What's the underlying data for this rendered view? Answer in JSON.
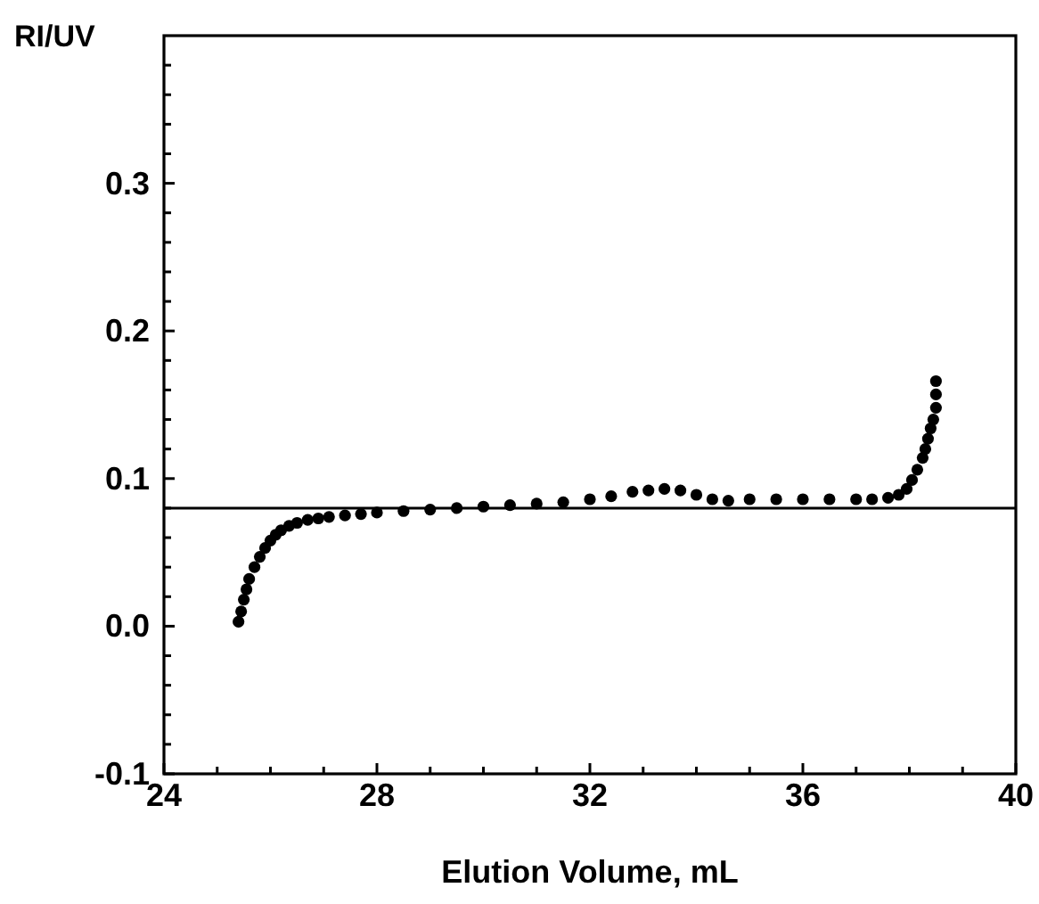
{
  "chart_data": {
    "type": "scatter",
    "xlabel": "Elution Volume, mL",
    "ylabel": "RI/UV",
    "xlim": [
      24,
      40
    ],
    "ylim": [
      -0.1,
      0.4
    ],
    "xticks": [
      24,
      {
        "value": 25,
        "label": null
      },
      {
        "value": 26,
        "label": null
      },
      {
        "value": 27,
        "label": null
      },
      28,
      {
        "value": 29,
        "label": null
      },
      {
        "value": 30,
        "label": null
      },
      {
        "value": 31,
        "label": null
      },
      32,
      {
        "value": 33,
        "label": null
      },
      {
        "value": 34,
        "label": null
      },
      {
        "value": 35,
        "label": null
      },
      36,
      {
        "value": 37,
        "label": null
      },
      {
        "value": 38,
        "label": null
      },
      {
        "value": 39,
        "label": null
      },
      40
    ],
    "yticks": [
      {
        "value": -0.1,
        "label": "-0.1"
      },
      {
        "value": -0.08,
        "label": null
      },
      {
        "value": -0.06,
        "label": null
      },
      {
        "value": -0.04,
        "label": null
      },
      {
        "value": -0.02,
        "label": null
      },
      {
        "value": 0,
        "label": "0.0"
      },
      {
        "value": 0.02,
        "label": null
      },
      {
        "value": 0.04,
        "label": null
      },
      {
        "value": 0.06,
        "label": null
      },
      {
        "value": 0.08,
        "label": null
      },
      {
        "value": 0.1,
        "label": "0.1"
      },
      {
        "value": 0.12,
        "label": null
      },
      {
        "value": 0.14,
        "label": null
      },
      {
        "value": 0.16,
        "label": null
      },
      {
        "value": 0.18,
        "label": null
      },
      {
        "value": 0.2,
        "label": "0.2"
      },
      {
        "value": 0.22,
        "label": null
      },
      {
        "value": 0.24,
        "label": null
      },
      {
        "value": 0.26,
        "label": null
      },
      {
        "value": 0.28,
        "label": null
      },
      {
        "value": 0.3,
        "label": "0.3"
      },
      {
        "value": 0.32,
        "label": null
      },
      {
        "value": 0.34,
        "label": null
      },
      {
        "value": 0.36,
        "label": null
      },
      {
        "value": 0.38,
        "label": null
      }
    ],
    "marker": "circle",
    "grid": false,
    "ref_lines": [
      {
        "axis": "y",
        "value": 0.08,
        "color": "#000000"
      }
    ],
    "series": [
      {
        "color": "#000000",
        "x": [
          25.4,
          25.45,
          25.5,
          25.55,
          25.6,
          25.7,
          25.8,
          25.9,
          26.0,
          26.1,
          26.2,
          26.35,
          26.5,
          26.7,
          26.9,
          27.1,
          27.4,
          27.7,
          28.0,
          28.5,
          29.0,
          29.5,
          30.0,
          30.5,
          31.0,
          31.5,
          32.0,
          32.4,
          32.8,
          33.1,
          33.4,
          33.7,
          34.0,
          34.3,
          34.6,
          35.0,
          35.5,
          36.0,
          36.5,
          37.0,
          37.3,
          37.6,
          37.8,
          37.95,
          38.05,
          38.15,
          38.25,
          38.3,
          38.35,
          38.4,
          38.45,
          38.5,
          38.5,
          38.5
        ],
        "values": [
          0.003,
          0.01,
          0.018,
          0.025,
          0.032,
          0.04,
          0.047,
          0.053,
          0.058,
          0.062,
          0.065,
          0.068,
          0.07,
          0.072,
          0.073,
          0.074,
          0.075,
          0.076,
          0.077,
          0.078,
          0.079,
          0.08,
          0.081,
          0.082,
          0.083,
          0.084,
          0.086,
          0.088,
          0.091,
          0.092,
          0.093,
          0.092,
          0.089,
          0.086,
          0.085,
          0.086,
          0.086,
          0.086,
          0.086,
          0.086,
          0.086,
          0.087,
          0.089,
          0.093,
          0.099,
          0.106,
          0.114,
          0.12,
          0.127,
          0.134,
          0.14,
          0.148,
          0.157,
          0.166
        ]
      }
    ]
  }
}
